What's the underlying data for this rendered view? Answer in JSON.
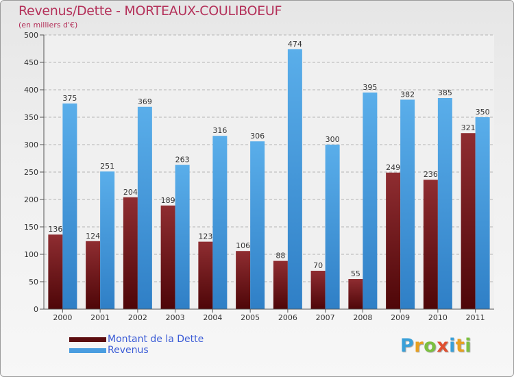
{
  "title": "Revenus/Dette - MORTEAUX-COULIBOEUF",
  "subtitle": "(en milliers d'€)",
  "chart_data": {
    "type": "bar",
    "title": "Revenus/Dette - MORTEAUX-COULIBOEUF",
    "ylabel": "(en milliers d'€)",
    "xlabel": "",
    "categories": [
      "2000",
      "2001",
      "2002",
      "2003",
      "2004",
      "2005",
      "2006",
      "2007",
      "2008",
      "2009",
      "2010",
      "2011"
    ],
    "ylim": [
      0,
      500
    ],
    "yticks": [
      0,
      50,
      100,
      150,
      200,
      250,
      300,
      350,
      400,
      450,
      500
    ],
    "grid": true,
    "legend_position": "bottom-left",
    "series": [
      {
        "name": "Montant de la Dette",
        "color": "#7a1e22",
        "values": [
          136,
          124,
          204,
          189,
          123,
          106,
          88,
          70,
          55,
          249,
          236,
          321
        ]
      },
      {
        "name": "Revenus",
        "color": "#4a9de0",
        "values": [
          375,
          251,
          369,
          263,
          316,
          306,
          474,
          300,
          395,
          382,
          385,
          350
        ]
      }
    ]
  },
  "legend": {
    "items": [
      {
        "label": "Montant de la Dette",
        "color": "#5c0d10"
      },
      {
        "label": "Revenus",
        "color": "#4a9de0"
      }
    ]
  },
  "logo": {
    "letters": [
      "P",
      "r",
      "o",
      "x",
      "i",
      "t",
      "i"
    ],
    "colors": [
      "#3aa0d8",
      "#e8a020",
      "#7cc040",
      "#e05030",
      "#3aa0d8",
      "#e8a020",
      "#7cc040"
    ]
  }
}
